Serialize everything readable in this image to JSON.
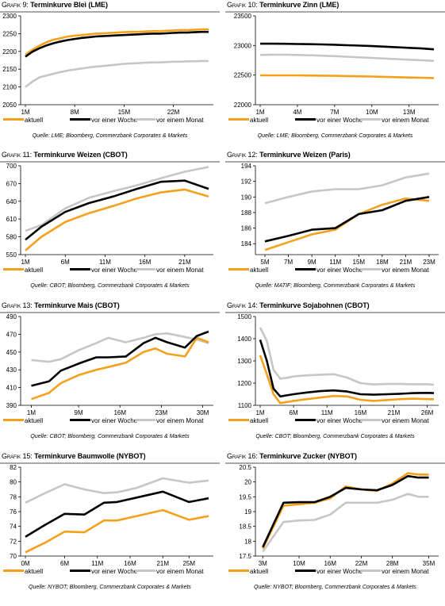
{
  "colors": {
    "aktuell": "#f5a01a",
    "woche": "#000000",
    "monat": "#c6c6c6"
  },
  "charts": [
    {
      "prefix": "Grafik 9:",
      "title": "Terminkurve Blei (LME)",
      "source": "Quelle: LME; Bloomberg, Commerzbank Corporates & Markets",
      "legend": [
        "aktuell",
        "vor einer Woche",
        "vor einem Monat"
      ],
      "chart_data": {
        "type": "line",
        "x": [
          1,
          2,
          3,
          4,
          5,
          6,
          7,
          8,
          9,
          10,
          11,
          12,
          13,
          14,
          15,
          16,
          17,
          18,
          19,
          20,
          21,
          22,
          23,
          24,
          25,
          26,
          27
        ],
        "xticks": [
          {
            "x": 1,
            "label": "1M"
          },
          {
            "x": 8,
            "label": "8M"
          },
          {
            "x": 15,
            "label": "15M"
          },
          {
            "x": 22,
            "label": "22M"
          }
        ],
        "yticks": [
          2050,
          2100,
          2150,
          2200,
          2250,
          2300
        ],
        "ylim": [
          2050,
          2300
        ],
        "xlim": [
          1,
          27
        ],
        "series": [
          {
            "name": "aktuell",
            "values": [
              2190,
              2205,
              2216,
              2226,
              2233,
              2237,
              2242,
              2244,
              2246,
              2248,
              2250,
              2251,
              2252,
              2253,
              2254,
              2255,
              2255,
              2256,
              2257,
              2257,
              2258,
              2259,
              2260,
              2260,
              2261,
              2262,
              2262
            ]
          },
          {
            "name": "vor einer Woche",
            "values": [
              2185,
              2199,
              2209,
              2217,
              2223,
              2228,
              2232,
              2235,
              2238,
              2240,
              2242,
              2243,
              2244,
              2245,
              2246,
              2247,
              2248,
              2249,
              2250,
              2250,
              2251,
              2252,
              2253,
              2253,
              2254,
              2255,
              2255
            ]
          },
          {
            "name": "vor einem Monat",
            "values": [
              2100,
              2115,
              2127,
              2132,
              2137,
              2142,
              2146,
              2149,
              2152,
              2155,
              2157,
              2159,
              2161,
              2163,
              2165,
              2166,
              2167,
              2168,
              2169,
              2169,
              2170,
              2171,
              2171,
              2172,
              2172,
              2173,
              2173
            ]
          }
        ]
      }
    },
    {
      "prefix": "Grafik 10:",
      "title": "Terminkurve Zinn (LME)",
      "source": "Quelle: LME; Bloomberg, Commerzbank Corporates & Markets",
      "legend": [
        "aktuell",
        "vor einer Woche",
        "vor einem Monat"
      ],
      "chart_data": {
        "type": "line",
        "x": [
          1,
          2,
          3,
          4,
          5,
          6,
          7,
          8,
          9,
          10,
          11,
          12,
          13,
          14,
          15
        ],
        "xticks": [
          {
            "x": 1,
            "label": "1M"
          },
          {
            "x": 4,
            "label": "4M"
          },
          {
            "x": 7,
            "label": "7M"
          },
          {
            "x": 10,
            "label": "10M"
          },
          {
            "x": 13,
            "label": "13M"
          }
        ],
        "yticks": [
          22000,
          22500,
          23000,
          23500
        ],
        "ylim": [
          22000,
          23500
        ],
        "xlim": [
          1,
          15
        ],
        "series": [
          {
            "name": "aktuell",
            "values": [
              22495,
              22495,
              22495,
              22495,
              22493,
              22490,
              22487,
              22483,
              22479,
              22475,
              22470,
              22465,
              22460,
              22455,
              22450
            ]
          },
          {
            "name": "vor einer Woche",
            "values": [
              23030,
              23030,
              23028,
              23025,
              23022,
              23018,
              23013,
              23005,
              22998,
              22990,
              22980,
              22970,
              22960,
              22950,
              22935
            ]
          },
          {
            "name": "vor einem Monat",
            "values": [
              22840,
              22845,
              22845,
              22840,
              22835,
              22828,
              22820,
              22810,
              22800,
              22790,
              22780,
              22770,
              22760,
              22750,
              22740
            ]
          }
        ]
      }
    },
    {
      "prefix": "Grafik 11:",
      "title": "Terminkurve Weizen (CBOT)",
      "source": "Quelle: CBOT; Bloomberg, Commerzbank Corporates & Markets",
      "legend": [
        "aktuell",
        "vor einer Woche",
        "vor einem Monat"
      ],
      "chart_data": {
        "type": "line",
        "x": [
          1,
          3,
          6,
          9,
          12,
          15,
          18,
          21,
          24
        ],
        "xticks": [
          {
            "x": 1,
            "label": "1M"
          },
          {
            "x": 6,
            "label": "6M"
          },
          {
            "x": 11,
            "label": "11M"
          },
          {
            "x": 16,
            "label": "16M"
          },
          {
            "x": 21,
            "label": "21M"
          }
        ],
        "yticks": [
          550,
          580,
          610,
          640,
          670,
          700
        ],
        "ylim": [
          550,
          700
        ],
        "xlim": [
          1,
          24
        ],
        "series": [
          {
            "name": "aktuell",
            "values": [
              557,
              580,
              605,
              620,
              632,
              645,
              655,
              660,
              648
            ]
          },
          {
            "name": "vor einer Woche",
            "values": [
              575,
              597,
              622,
              637,
              648,
              661,
              673,
              675,
              661
            ]
          },
          {
            "name": "vor einem Monat",
            "values": [
              590,
              600,
              628,
              646,
              657,
              667,
              679,
              690,
              698
            ]
          }
        ]
      }
    },
    {
      "prefix": "Grafik 12:",
      "title": "Terminkurve Weizen (Paris)",
      "source": "Quelle: MATIF; Bloomberg, Commerzbank Corporates & Markets",
      "legend": [
        "aktuell",
        "vor einer Woche",
        "vor einem Monat"
      ],
      "chart_data": {
        "type": "line",
        "x": [
          5,
          7,
          9,
          11,
          15,
          18,
          21,
          23
        ],
        "xticks": [
          {
            "x": 5,
            "label": "5M"
          },
          {
            "x": 7,
            "label": "7M"
          },
          {
            "x": 9,
            "label": "9M"
          },
          {
            "x": 11,
            "label": "11M"
          },
          {
            "x": 15,
            "label": "15M"
          },
          {
            "x": 18,
            "label": "18M"
          },
          {
            "x": 21,
            "label": "21M"
          },
          {
            "x": 23,
            "label": "23M"
          }
        ],
        "xcategorical": true,
        "yticks": [
          184,
          186,
          188,
          190,
          192,
          194
        ],
        "ylim": [
          182.6,
          194
        ],
        "xlim": [
          5,
          23
        ],
        "series": [
          {
            "name": "aktuell",
            "values": [
              183.2,
              184.2,
              185.2,
              185.8,
              187.8,
              189.0,
              189.8,
              189.5
            ]
          },
          {
            "name": "vor einer Woche",
            "values": [
              184.3,
              185.0,
              185.8,
              186.0,
              187.8,
              188.3,
              189.5,
              190.0
            ]
          },
          {
            "name": "vor einem Monat",
            "values": [
              189.2,
              190.0,
              190.7,
              191.0,
              191.0,
              191.5,
              192.5,
              193.0
            ]
          }
        ]
      }
    },
    {
      "prefix": "Grafik 13:",
      "title": "Terminkurve Mais (CBOT)",
      "source": "Quelle: CBOT; Bloomberg, Commerzbank Corporates & Markets",
      "legend": [
        "aktuell",
        "vor einer Woche",
        "vor einem Monat"
      ],
      "chart_data": {
        "type": "line",
        "x": [
          1,
          4,
          6,
          9,
          12,
          14,
          17,
          20,
          22,
          24,
          27,
          29,
          31
        ],
        "xticks": [
          {
            "x": 1,
            "label": "1M"
          },
          {
            "x": 9,
            "label": "9M"
          },
          {
            "x": 16,
            "label": "16M"
          },
          {
            "x": 23,
            "label": "23M"
          },
          {
            "x": 30,
            "label": "30M"
          }
        ],
        "yticks": [
          390,
          410,
          430,
          450,
          470,
          490
        ],
        "ylim": [
          390,
          490
        ],
        "xlim": [
          0,
          31
        ],
        "series": [
          {
            "name": "aktuell",
            "values": [
              397,
              404,
              415,
              424,
              430,
              433,
              438,
              450,
              454,
              448,
              445,
              466,
              461
            ]
          },
          {
            "name": "vor einer Woche",
            "values": [
              412,
              417,
              429,
              437,
              444,
              444,
              445,
              460,
              466,
              461,
              455,
              468,
              473
            ]
          },
          {
            "name": "vor einem Monat",
            "values": [
              441,
              439,
              442,
              452,
              460,
              466,
              461,
              466,
              470,
              471,
              467,
              464,
              460
            ]
          }
        ]
      }
    },
    {
      "prefix": "Grafik 14:",
      "title": "Terminkurve Sojabohnen (CBOT)",
      "source": "Quelle: CBOT; Bloomberg, Commerzbank Corporates & Markets",
      "legend": [
        "aktuell",
        "vor einer Woche",
        "vor einem Monat"
      ],
      "chart_data": {
        "type": "line",
        "x": [
          1,
          2,
          3,
          4,
          5,
          6,
          8,
          10,
          12,
          14,
          16,
          18,
          20,
          22,
          24,
          26,
          27
        ],
        "xticks": [
          {
            "x": 1,
            "label": "1M"
          },
          {
            "x": 6,
            "label": "6M"
          },
          {
            "x": 11,
            "label": "11M"
          },
          {
            "x": 16,
            "label": "16M"
          },
          {
            "x": 21,
            "label": "21M"
          },
          {
            "x": 26,
            "label": "26M"
          }
        ],
        "yticks": [
          1100,
          1200,
          1300,
          1400,
          1500
        ],
        "ylim": [
          1100,
          1500
        ],
        "xlim": [
          1,
          27
        ],
        "series": [
          {
            "name": "aktuell",
            "values": [
              1325,
              1240,
              1150,
              1110,
              1115,
              1120,
              1128,
              1135,
              1142,
              1140,
              1125,
              1120,
              1124,
              1128,
              1130,
              1128,
              1127
            ]
          },
          {
            "name": "vor einer Woche",
            "values": [
              1395,
              1300,
              1175,
              1140,
              1145,
              1150,
              1158,
              1164,
              1167,
              1162,
              1150,
              1148,
              1150,
              1152,
              1155,
              1156,
              1155
            ]
          },
          {
            "name": "vor einem Monat",
            "values": [
              1450,
              1390,
              1260,
              1220,
              1224,
              1230,
              1235,
              1238,
              1240,
              1225,
              1200,
              1194,
              1196,
              1196,
              1195,
              1195,
              1193
            ]
          }
        ]
      }
    },
    {
      "prefix": "Grafik 15:",
      "title": "Terminkurve Baumwolle (NYBOT)",
      "source": "Quelle: NYBOT; Bloomberg, Commerzbank Corporates & Markets",
      "legend": [
        "aktuell",
        "vor einer Woche",
        "vor einem Monat"
      ],
      "chart_data": {
        "type": "line",
        "x": [
          0,
          3,
          6,
          9,
          12,
          14,
          17,
          21,
          25,
          28
        ],
        "xticks": [
          {
            "x": 0,
            "label": "0M"
          },
          {
            "x": 6,
            "label": "6M"
          },
          {
            "x": 11,
            "label": "11M"
          },
          {
            "x": 16,
            "label": "16M"
          },
          {
            "x": 21,
            "label": "21M"
          },
          {
            "x": 25,
            "label": "25M"
          }
        ],
        "yticks": [
          70,
          72,
          74,
          76,
          78,
          80,
          82
        ],
        "ylim": [
          70,
          82
        ],
        "xlim": [
          0,
          28
        ],
        "series": [
          {
            "name": "aktuell",
            "values": [
              70.5,
              71.8,
              73.3,
              73.2,
              74.8,
              74.8,
              75.4,
              76.2,
              74.9,
              75.4
            ]
          },
          {
            "name": "vor einer Woche",
            "values": [
              72.6,
              74.2,
              75.7,
              75.6,
              77.2,
              77.3,
              77.9,
              78.7,
              77.3,
              77.8
            ]
          },
          {
            "name": "vor einem Monat",
            "values": [
              77.2,
              78.5,
              79.7,
              79.0,
              78.5,
              78.6,
              79.2,
              80.5,
              79.9,
              80.2
            ]
          }
        ]
      }
    },
    {
      "prefix": "Grafik 16:",
      "title": "Terminkurve Zucker (NYBOT)",
      "source": "Quelle: NYBOT; Bloomberg, Commerzbank Corporates & Markets",
      "legend": [
        "aktuell",
        "vor einer Woche",
        "vor einem Monat"
      ],
      "chart_data": {
        "type": "line",
        "x": [
          3,
          7,
          10,
          13,
          16,
          19,
          22,
          25,
          28,
          31,
          33,
          35
        ],
        "xticks": [
          {
            "x": 3,
            "label": "3M"
          },
          {
            "x": 10,
            "label": "10M"
          },
          {
            "x": 16,
            "label": "16M"
          },
          {
            "x": 22,
            "label": "22M"
          },
          {
            "x": 28,
            "label": "28M"
          },
          {
            "x": 35,
            "label": "35M"
          }
        ],
        "yticks": [
          17.5,
          18.0,
          18.5,
          19.0,
          19.5,
          20.0,
          20.5
        ],
        "ylim": [
          17.5,
          20.5
        ],
        "xlim": [
          2.5,
          36
        ],
        "series": [
          {
            "name": "aktuell",
            "values": [
              17.75,
              19.2,
              19.25,
              19.3,
              19.45,
              19.85,
              19.75,
              19.7,
              19.95,
              20.3,
              20.25,
              20.25
            ]
          },
          {
            "name": "vor einer Woche",
            "values": [
              17.8,
              19.3,
              19.32,
              19.32,
              19.5,
              19.8,
              19.75,
              19.72,
              19.9,
              20.2,
              20.15,
              20.15
            ]
          },
          {
            "name": "vor einem Monat",
            "values": [
              17.65,
              18.65,
              18.7,
              18.72,
              18.9,
              19.3,
              19.3,
              19.3,
              19.4,
              19.6,
              19.5,
              19.5
            ]
          }
        ]
      }
    }
  ]
}
